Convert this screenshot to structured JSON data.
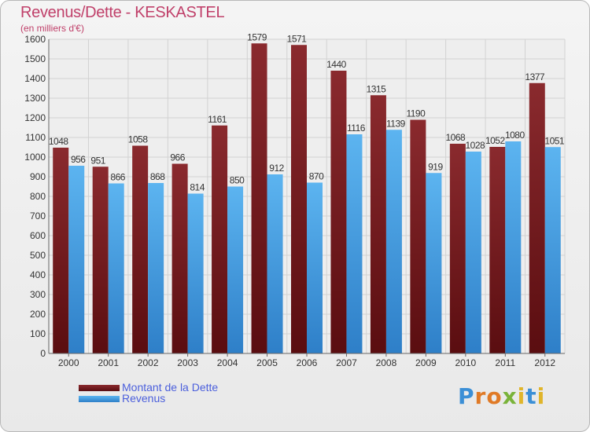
{
  "chart_data": {
    "type": "bar",
    "title": "Revenus/Dette - KESKASTEL",
    "subtitle": "(en milliers d'€)",
    "categories": [
      "2000",
      "2001",
      "2002",
      "2003",
      "2004",
      "2005",
      "2006",
      "2007",
      "2008",
      "2009",
      "2010",
      "2011",
      "2012"
    ],
    "series": [
      {
        "name": "Montant de la Dette",
        "color": "#7a1e22",
        "values": [
          1048,
          951,
          1058,
          966,
          1161,
          1579,
          1571,
          1440,
          1315,
          1190,
          1068,
          1052,
          1377
        ]
      },
      {
        "name": "Revenus",
        "color": "#4aa3e6",
        "values": [
          956,
          866,
          868,
          814,
          850,
          912,
          870,
          1116,
          1139,
          919,
          1028,
          1080,
          1051
        ]
      }
    ],
    "yticks": [
      0,
      100,
      200,
      300,
      400,
      500,
      600,
      700,
      800,
      900,
      1000,
      1100,
      1200,
      1300,
      1400,
      1500,
      1600
    ],
    "ylim": [
      0,
      1600
    ],
    "grid": true,
    "legend": "bottom-left"
  },
  "brand": {
    "letters": [
      {
        "ch": "P",
        "color": "#3b8fd6"
      },
      {
        "ch": "r",
        "color": "#e07a26"
      },
      {
        "ch": "o",
        "color": "#e07a26"
      },
      {
        "ch": "x",
        "color": "#7ab33a"
      },
      {
        "ch": "i",
        "color": "#e0b52a"
      },
      {
        "ch": "t",
        "color": "#3b8fd6"
      },
      {
        "ch": "i",
        "color": "#e0b52a"
      }
    ]
  }
}
